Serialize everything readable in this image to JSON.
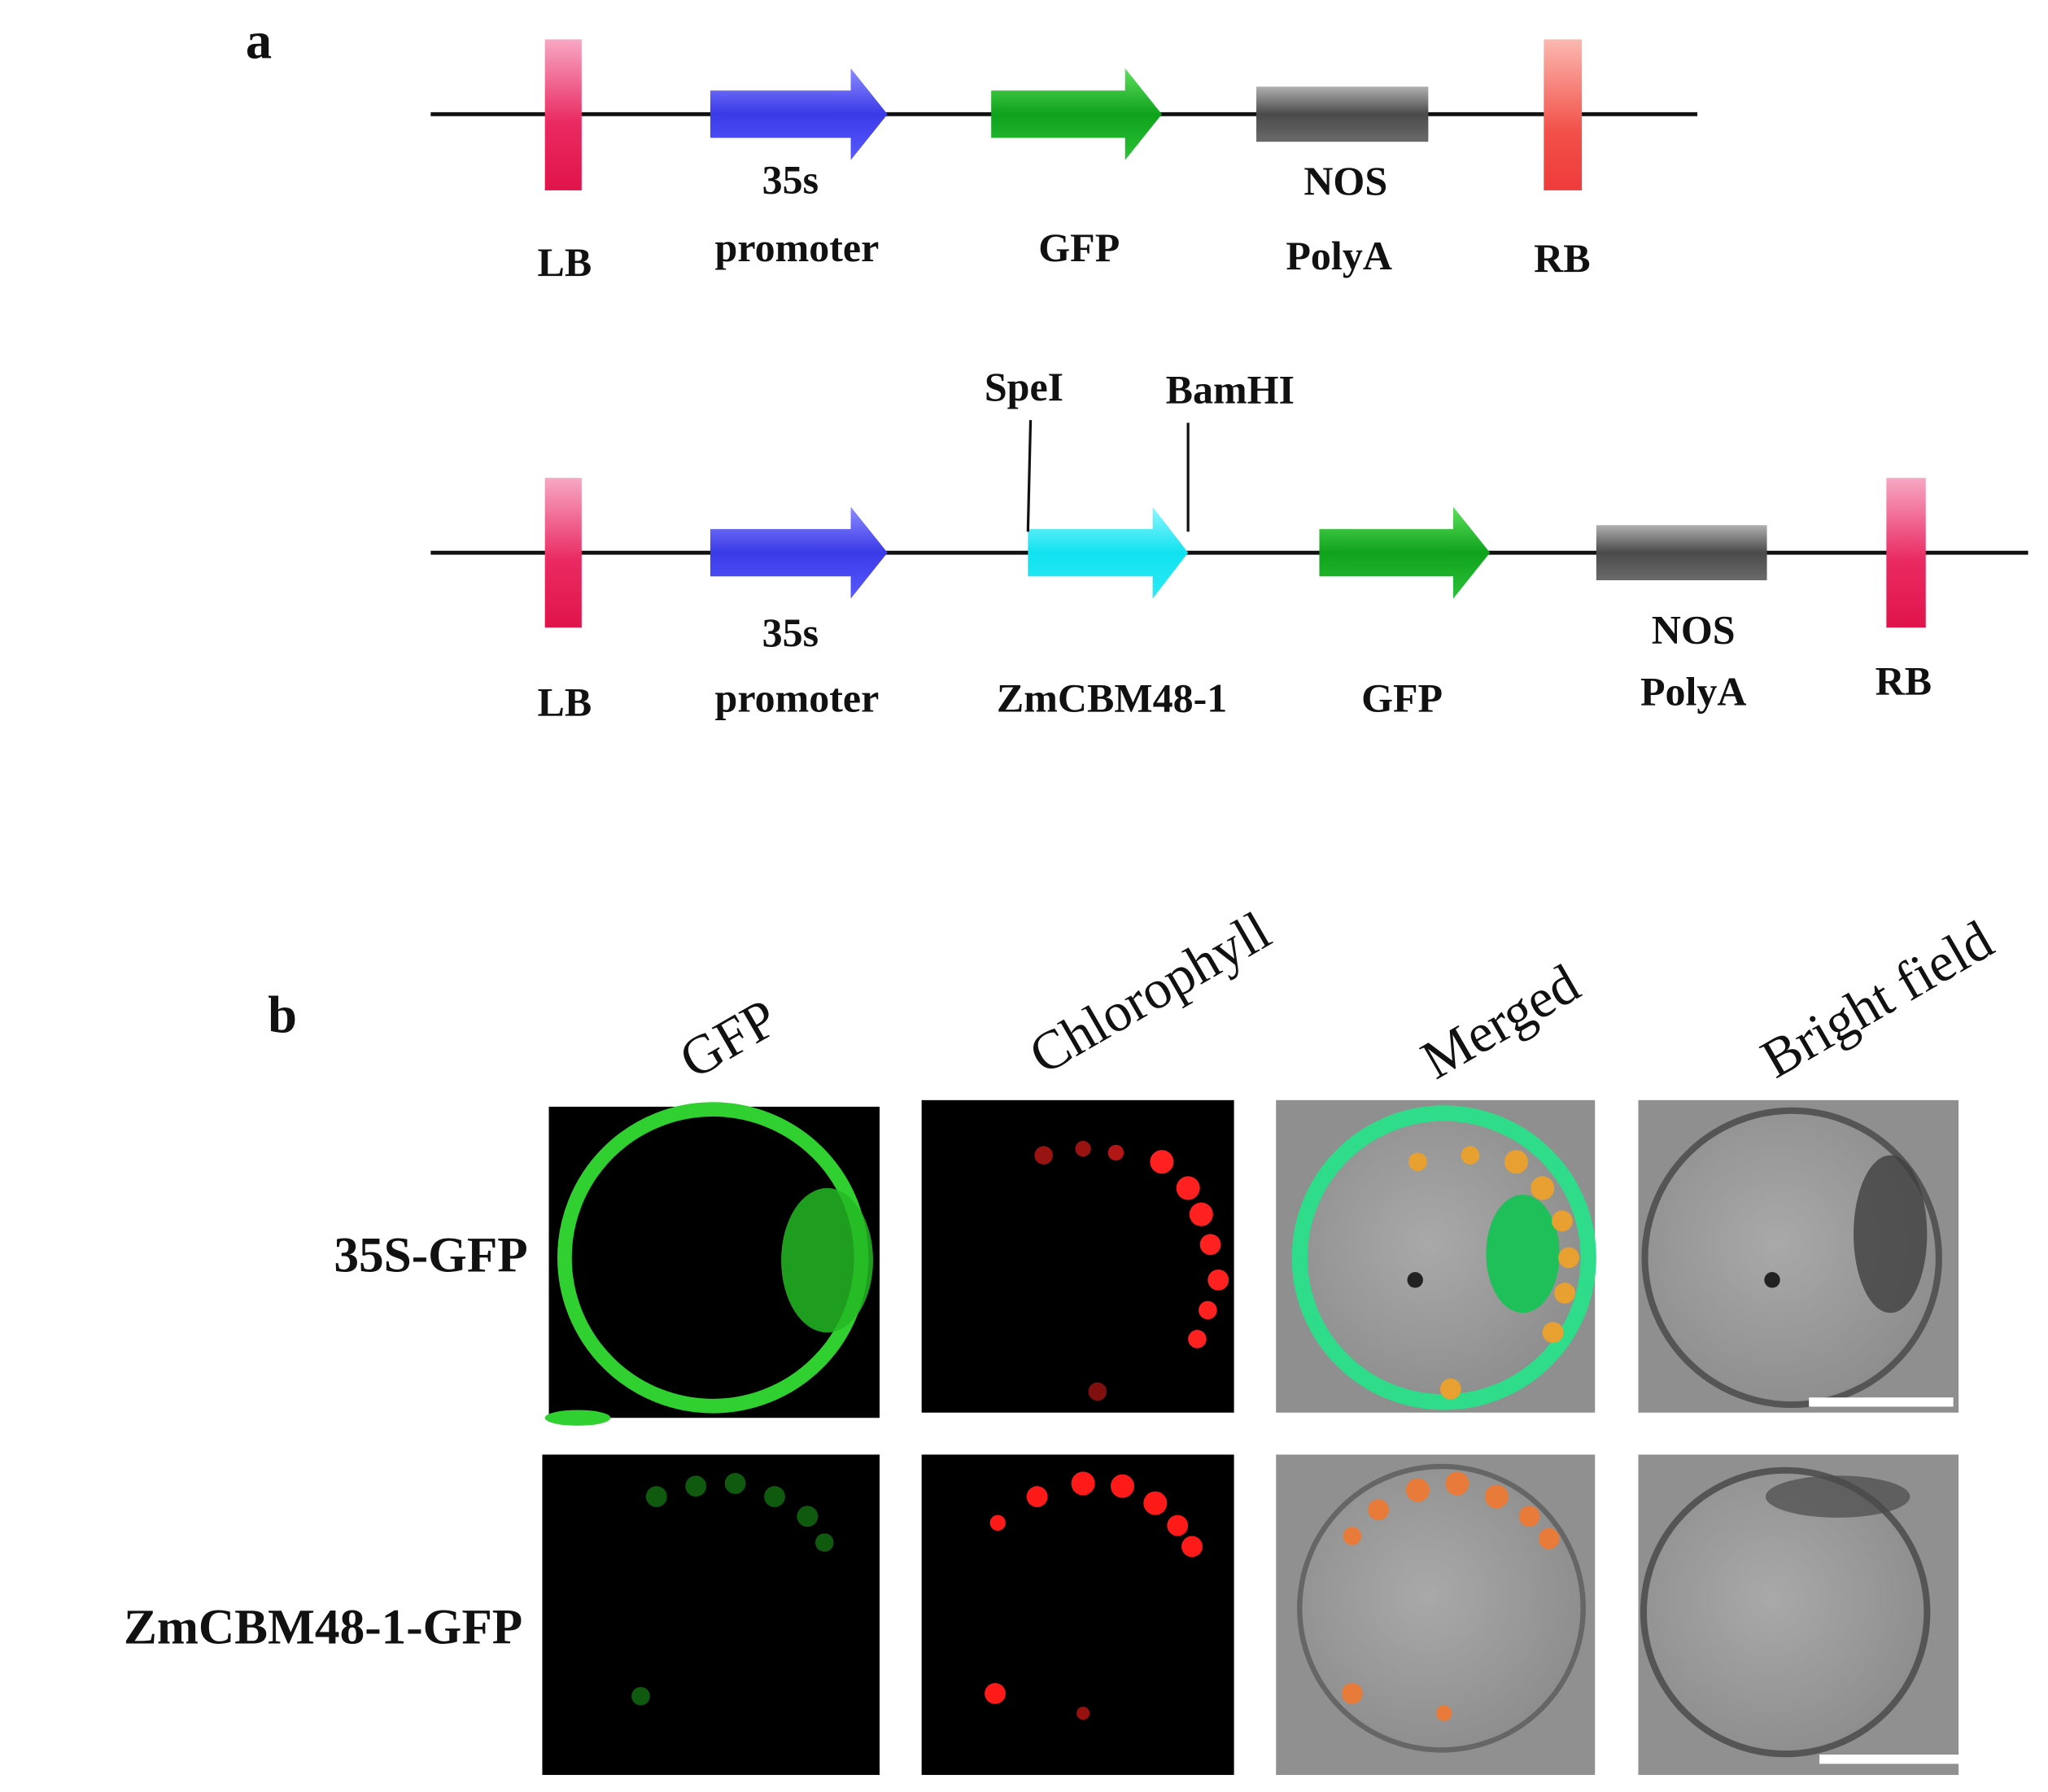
{
  "panel_a": {
    "label": "a",
    "construct_1": {
      "elements": [
        {
          "lines": [
            "LB"
          ]
        },
        {
          "lines": [
            "35s",
            "promoter"
          ]
        },
        {
          "lines": [
            "GFP"
          ]
        },
        {
          "lines": [
            "NOS",
            "PolyA"
          ]
        },
        {
          "lines": [
            "RB"
          ]
        }
      ]
    },
    "construct_2": {
      "sites": [
        "SpeI",
        "BamHI"
      ],
      "elements": [
        {
          "lines": [
            "LB"
          ]
        },
        {
          "lines": [
            "35s",
            "promoter"
          ]
        },
        {
          "lines": [
            "ZmCBM48-1"
          ]
        },
        {
          "lines": [
            "GFP"
          ]
        },
        {
          "lines": [
            "NOS",
            "PolyA"
          ]
        },
        {
          "lines": [
            "RB"
          ]
        }
      ]
    }
  },
  "panel_b": {
    "label": "b",
    "columns": [
      "GFP",
      "Chlorophyll",
      "Merged",
      "Bright field"
    ],
    "rows": [
      "35S-GFP",
      "ZmCBM48-1-GFP"
    ]
  }
}
